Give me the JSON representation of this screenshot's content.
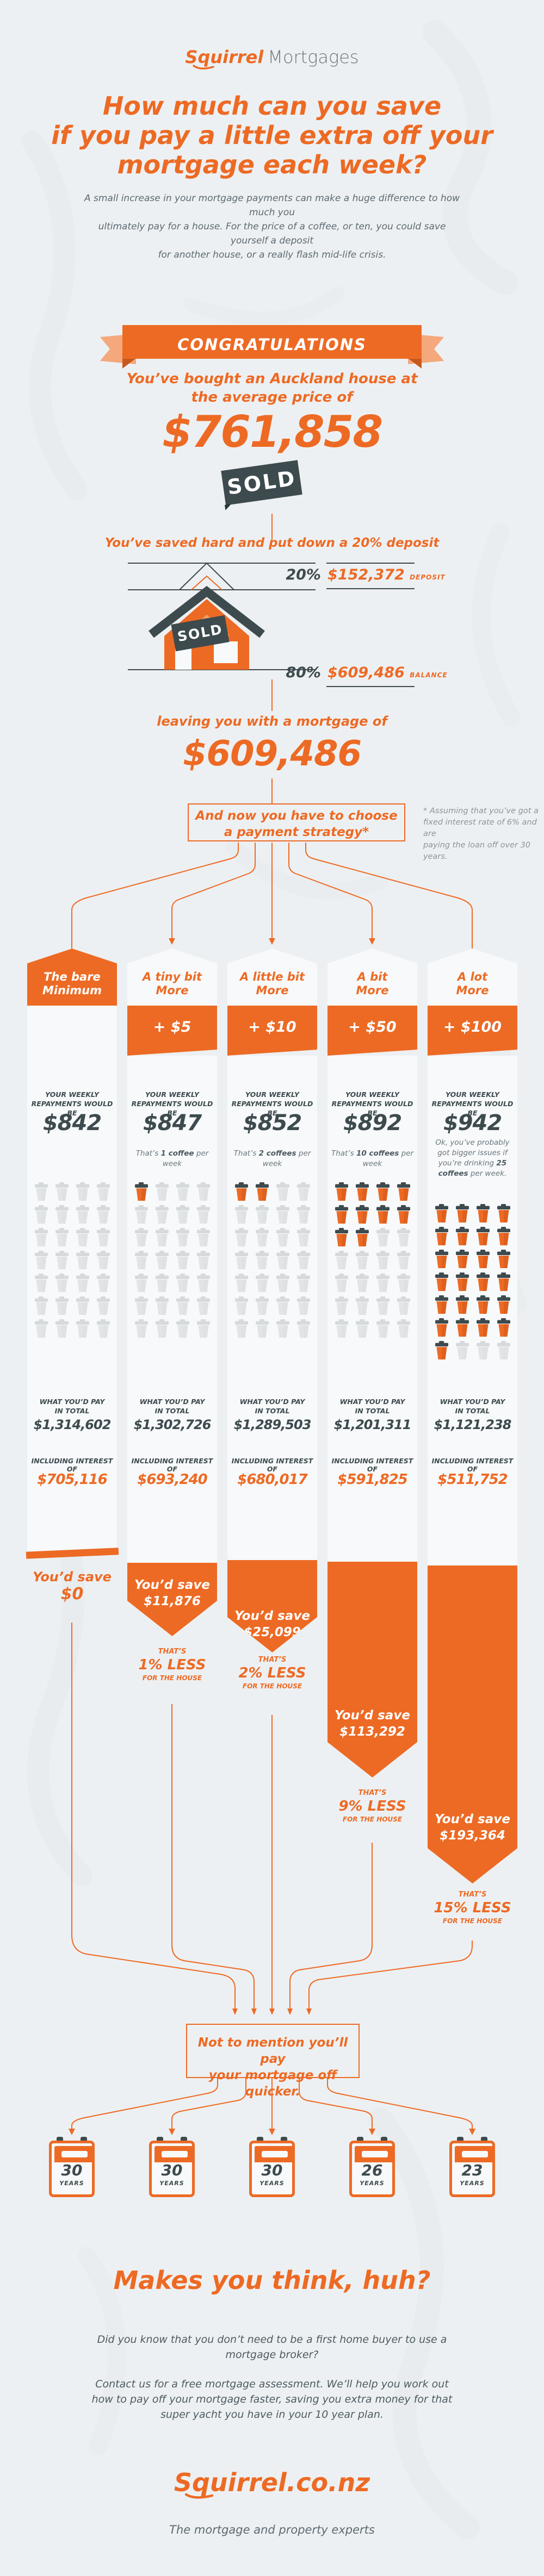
{
  "colors": {
    "background": "#edf0f2",
    "orange": "#ed6a24",
    "orange_light": "#f4a87c",
    "dark_slate": "#3d4a4e",
    "gray_text": "#5c6a72",
    "column_white": "#f7f9fa",
    "cup_gray": "#e2e5e7"
  },
  "header": {
    "logo_primary": "Squirrel",
    "logo_secondary": "Mortgages",
    "title_lines": [
      "How much can you save",
      "if you pay a little extra off your",
      "mortgage each week?"
    ],
    "intro_lines": [
      "A small increase in your mortgage payments can make a huge difference to how much you",
      "ultimately pay for a house. For the price of a coffee, or ten, you could save yourself a deposit",
      "for another house, or a really flash mid-life crisis."
    ]
  },
  "congrats": {
    "ribbon": "CONGRATULATIONS",
    "subtitle_lines": [
      "You’ve bought an Auckland house at",
      "the average price of"
    ],
    "price": "$761,858",
    "sold_tag": "SOLD"
  },
  "deposit": {
    "heading": "You’ve saved hard and put down a 20% deposit",
    "house_sold_tag": "SOLD",
    "deposit_pct": "20%",
    "deposit_amount": "$152,372",
    "deposit_label": "DEPOSIT",
    "balance_pct": "80%",
    "balance_amount": "$609,486",
    "balance_label": "BALANCE"
  },
  "mortgage": {
    "lead": "leaving you with a mortgage of",
    "amount": "$609,486",
    "strategy_lines": [
      "And now you have to choose",
      "a payment strategy*"
    ],
    "note_lines": [
      "* Assuming that you’ve got a",
      "fixed interest rate of 6% and are",
      "paying the loan off over 30 years."
    ]
  },
  "columns": [
    {
      "title_lines": [
        "The bare",
        "Minimum"
      ],
      "extra": null,
      "repay_label_lines": [
        "YOUR WEEKLY",
        "REPAYMENTS WOULD BE"
      ],
      "weekly": "$842",
      "coffee_note": null,
      "cups": {
        "orange": 0,
        "total": 28
      },
      "total_label_lines": [
        "WHAT YOU’D PAY",
        "IN TOTAL"
      ],
      "total": "$1,314,602",
      "interest_label": "INCLUDING INTEREST OF",
      "interest": "$705,116",
      "save_lines": [
        "You’d save",
        "$0"
      ],
      "less": null
    },
    {
      "title_lines": [
        "A tiny bit",
        "More"
      ],
      "extra": "+ $5",
      "repay_label_lines": [
        "YOUR WEEKLY",
        "REPAYMENTS WOULD BE"
      ],
      "weekly": "$847",
      "coffee_note": {
        "pre": "That’s ",
        "bold": "1 coffee",
        "post": " per week"
      },
      "cups": {
        "orange": 1,
        "total": 28
      },
      "total_label_lines": [
        "WHAT YOU’D PAY",
        "IN TOTAL"
      ],
      "total": "$1,302,726",
      "interest_label": "INCLUDING INTEREST OF",
      "interest": "$693,240",
      "save_lines": [
        "You’d save",
        "$11,876"
      ],
      "less": {
        "thats": "THAT’S",
        "pct": "1% LESS",
        "forhouse": "FOR THE HOUSE"
      }
    },
    {
      "title_lines": [
        "A little bit",
        "More"
      ],
      "extra": "+ $10",
      "repay_label_lines": [
        "YOUR WEEKLY",
        "REPAYMENTS WOULD BE"
      ],
      "weekly": "$852",
      "coffee_note": {
        "pre": "That’s ",
        "bold": "2 coffees",
        "post": " per week"
      },
      "cups": {
        "orange": 2,
        "total": 28
      },
      "total_label_lines": [
        "WHAT YOU’D PAY",
        "IN TOTAL"
      ],
      "total": "$1,289,503",
      "interest_label": "INCLUDING INTEREST OF",
      "interest": "$680,017",
      "save_lines": [
        "You’d save",
        "$25,099"
      ],
      "less": {
        "thats": "THAT’S",
        "pct": "2% LESS",
        "forhouse": "FOR THE HOUSE"
      }
    },
    {
      "title_lines": [
        "A bit",
        "More"
      ],
      "extra": "+ $50",
      "repay_label_lines": [
        "YOUR WEEKLY",
        "REPAYMENTS WOULD BE"
      ],
      "weekly": "$892",
      "coffee_note": {
        "pre": "That’s ",
        "bold": "10 coffees",
        "post": " per week"
      },
      "cups": {
        "orange": 10,
        "total": 28
      },
      "total_label_lines": [
        "WHAT YOU’D PAY",
        "IN TOTAL"
      ],
      "total": "$1,201,311",
      "interest_label": "INCLUDING INTEREST OF",
      "interest": "$591,825",
      "save_lines": [
        "You’d save",
        "$113,292"
      ],
      "less": {
        "thats": "THAT’S",
        "pct": "9% LESS",
        "forhouse": "FOR THE HOUSE"
      }
    },
    {
      "title_lines": [
        "A lot",
        "More"
      ],
      "extra": "+ $100",
      "repay_label_lines": [
        "YOUR WEEKLY",
        "REPAYMENTS WOULD BE"
      ],
      "weekly": "$942",
      "coffee_note": {
        "pre": "Ok, you’ve probably got bigger issues if you’re drinking ",
        "bold": "25 coffees",
        "post": " per week."
      },
      "cups": {
        "orange": 25,
        "total": 28
      },
      "total_label_lines": [
        "WHAT YOU’D PAY",
        "IN TOTAL"
      ],
      "total": "$1,121,238",
      "interest_label": "INCLUDING INTEREST OF",
      "interest": "$511,752",
      "save_lines": [
        "You’d save",
        "$193,364"
      ],
      "less": {
        "thats": "THAT’S",
        "pct": "15% LESS",
        "forhouse": "FOR THE HOUSE"
      }
    }
  ],
  "quicker": {
    "box_lines": [
      "Not to mention you’ll pay",
      "your mortgage off quicker."
    ]
  },
  "calendars": [
    {
      "years": "30",
      "label": "YEARS"
    },
    {
      "years": "30",
      "label": "YEARS"
    },
    {
      "years": "30",
      "label": "YEARS"
    },
    {
      "years": "26",
      "label": "YEARS"
    },
    {
      "years": "23",
      "label": "YEARS"
    }
  ],
  "outro": {
    "heading": "Makes you think, huh?",
    "para1_lines": [
      "Did you know that you don’t need to be a first home buyer to use a",
      "mortgage broker?"
    ],
    "para2_lines": [
      "Contact us for a free mortgage assessment. We’ll help you work out",
      "how to pay off your mortgage faster, saving you extra money for that",
      "super yacht you have in your 10 year plan."
    ]
  },
  "footer": {
    "logo": "Squirrel.co.nz",
    "tagline": "The mortgage and property experts"
  }
}
